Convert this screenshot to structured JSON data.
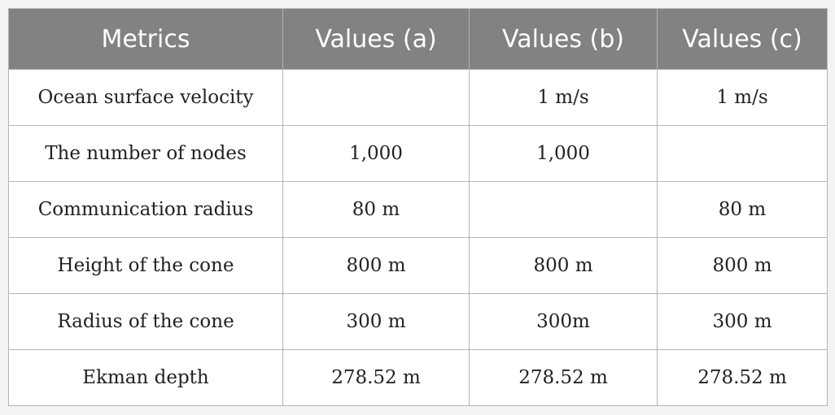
{
  "table": {
    "header": [
      "Metrics",
      "Values (a)",
      "Values (b)",
      "Values (c)"
    ],
    "rows": [
      [
        "Ocean surface velocity",
        null,
        "1 m/s",
        "1 m/s"
      ],
      [
        "The number of nodes",
        "1,000",
        "1,000",
        null
      ],
      [
        "Communication radius",
        "80 m",
        null,
        "80 m"
      ],
      [
        "Height of the cone",
        "800 m",
        "800 m",
        "800 m"
      ],
      [
        "Radius of the cone",
        "300 m",
        "300m",
        "300 m"
      ],
      [
        "Ekman depth",
        "278.52 m",
        "278.52 m",
        "278.52 m"
      ]
    ]
  }
}
